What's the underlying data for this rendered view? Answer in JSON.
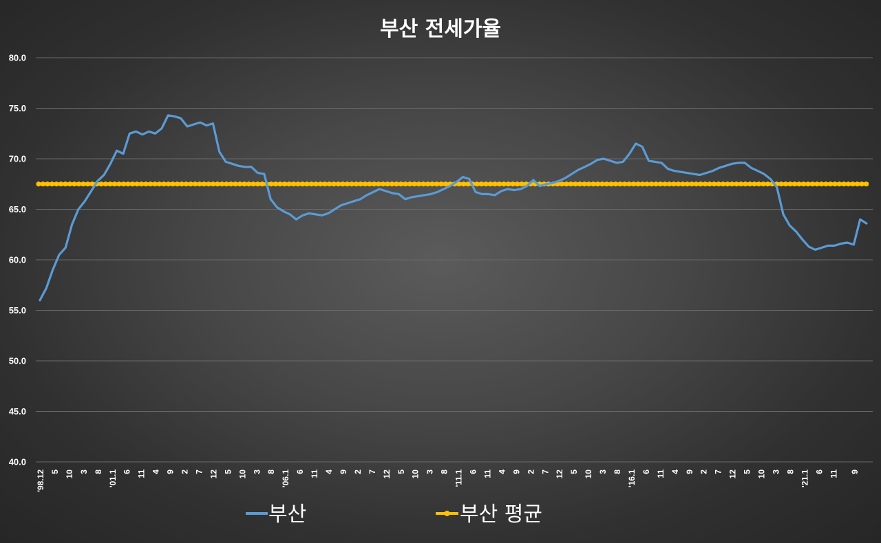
{
  "chart_data": {
    "type": "line",
    "title": "부산 전세가율",
    "xlabel": "",
    "ylabel": "",
    "ylim": [
      40,
      80
    ],
    "y_ticks": [
      "80.0",
      "75.0",
      "70.0",
      "65.0",
      "60.0",
      "55.0",
      "50.0",
      "45.0",
      "40.0"
    ],
    "grid": true,
    "legend_position": "bottom",
    "x_tick_labels": [
      "'98.12",
      "5",
      "10",
      "3",
      "8",
      "'01.1",
      "6",
      "11",
      "4",
      "9",
      "2",
      "7",
      "12",
      "5",
      "10",
      "3",
      "8",
      "'06.1",
      "6",
      "11",
      "4",
      "9",
      "2",
      "7",
      "12",
      "5",
      "10",
      "3",
      "8",
      "'11.1",
      "6",
      "11",
      "4",
      "9",
      "2",
      "7",
      "12",
      "5",
      "10",
      "3",
      "8",
      "'16.1",
      "6",
      "11",
      "4",
      "9",
      "2",
      "7",
      "12",
      "5",
      "10",
      "3",
      "8",
      "'21.1",
      "6",
      "11",
      "9"
    ],
    "series": [
      {
        "name": "부산",
        "color": "#5b9bd5",
        "values": [
          56.0,
          57.2,
          59.0,
          60.5,
          61.2,
          63.5,
          65.0,
          65.8,
          66.8,
          67.8,
          68.4,
          69.5,
          70.8,
          70.5,
          72.5,
          72.7,
          72.4,
          72.7,
          72.5,
          73.0,
          74.3,
          74.2,
          74.0,
          73.2,
          73.4,
          73.6,
          73.3,
          73.5,
          70.7,
          69.7,
          69.5,
          69.3,
          69.2,
          69.2,
          68.6,
          68.5,
          66.0,
          65.2,
          64.8,
          64.5,
          64.0,
          64.4,
          64.6,
          64.5,
          64.4,
          64.6,
          65.0,
          65.4,
          65.6,
          65.8,
          66.0,
          66.4,
          66.7,
          67.0,
          66.8,
          66.6,
          66.5,
          66.0,
          66.2,
          66.3,
          66.4,
          66.5,
          66.7,
          67.0,
          67.3,
          67.7,
          68.2,
          68.0,
          66.7,
          66.5,
          66.5,
          66.4,
          66.8,
          67.0,
          66.9,
          67.0,
          67.3,
          67.9,
          67.3,
          67.5,
          67.6,
          67.8,
          68.1,
          68.5,
          68.9,
          69.2,
          69.5,
          69.9,
          70.0,
          69.8,
          69.6,
          69.7,
          70.5,
          71.5,
          71.2,
          69.8,
          69.7,
          69.6,
          69.0,
          68.8,
          68.7,
          68.6,
          68.5,
          68.4,
          68.6,
          68.8,
          69.1,
          69.3,
          69.5,
          69.6,
          69.6,
          69.1,
          68.8,
          68.5,
          68.0,
          67.2,
          64.5,
          63.4,
          62.8,
          62.0,
          61.3,
          61.0,
          61.2,
          61.4,
          61.4,
          61.6,
          61.7,
          61.5,
          64.0,
          63.6
        ]
      },
      {
        "name": "부산 평균",
        "color": "#ffc000",
        "values": [
          67.5
        ]
      }
    ]
  }
}
